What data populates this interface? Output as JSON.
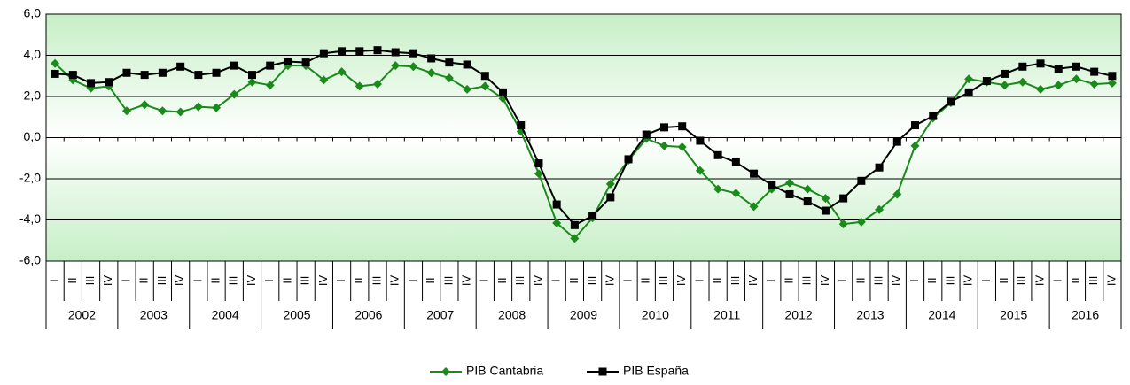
{
  "chart_data": {
    "type": "line",
    "categories": [
      "I",
      "II",
      "III",
      "IV",
      "I",
      "II",
      "III",
      "IV",
      "I",
      "II",
      "III",
      "IV",
      "I",
      "II",
      "III",
      "IV",
      "I",
      "II",
      "III",
      "IV",
      "I",
      "II",
      "III",
      "IV",
      "I",
      "II",
      "III",
      "IV",
      "I",
      "II",
      "III",
      "IV",
      "I",
      "II",
      "III",
      "IV",
      "I",
      "II",
      "III",
      "IV",
      "I",
      "II",
      "III",
      "IV",
      "I",
      "II",
      "III",
      "IV",
      "I",
      "II",
      "III",
      "IV",
      "I",
      "II",
      "III",
      "IV",
      "I",
      "II",
      "III",
      "IV"
    ],
    "years": [
      "2002",
      "2003",
      "2004",
      "2005",
      "2006",
      "2007",
      "2008",
      "2009",
      "2010",
      "2011",
      "2012",
      "2013",
      "2014",
      "2015",
      "2016"
    ],
    "series": [
      {
        "name": "PIB Cantabria",
        "color": "#1a8a1a",
        "marker": "diamond",
        "values": [
          3.6,
          2.8,
          2.4,
          2.5,
          1.3,
          1.6,
          1.3,
          1.25,
          1.5,
          1.45,
          2.1,
          2.7,
          2.55,
          3.5,
          3.5,
          2.8,
          3.2,
          2.5,
          2.6,
          3.5,
          3.45,
          3.15,
          2.9,
          2.35,
          2.5,
          1.9,
          0.3,
          -1.75,
          -4.15,
          -4.9,
          -3.9,
          -2.25,
          -1.1,
          -0.05,
          -0.4,
          -0.45,
          -1.6,
          -2.5,
          -2.7,
          -3.35,
          -2.5,
          -2.2,
          -2.5,
          -2.95,
          -4.2,
          -4.1,
          -3.5,
          -2.75,
          -0.4,
          0.95,
          1.7,
          2.85,
          2.7,
          2.55,
          2.7,
          2.35,
          2.55,
          2.85,
          2.6,
          2.65
        ]
      },
      {
        "name": "PIB España",
        "color": "#000000",
        "marker": "square",
        "values": [
          3.1,
          3.05,
          2.65,
          2.7,
          3.15,
          3.05,
          3.15,
          3.45,
          3.05,
          3.15,
          3.5,
          3.05,
          3.5,
          3.7,
          3.65,
          4.1,
          4.2,
          4.2,
          4.25,
          4.15,
          4.1,
          3.85,
          3.65,
          3.55,
          3.0,
          2.2,
          0.6,
          -1.25,
          -3.25,
          -4.25,
          -3.8,
          -2.9,
          -1.05,
          0.15,
          0.5,
          0.55,
          -0.15,
          -0.85,
          -1.2,
          -1.75,
          -2.3,
          -2.75,
          -3.1,
          -3.55,
          -2.95,
          -2.1,
          -1.45,
          -0.2,
          0.6,
          1.05,
          1.75,
          2.2,
          2.75,
          3.1,
          3.45,
          3.6,
          3.35,
          3.45,
          3.2,
          3.0
        ]
      }
    ],
    "ylim": [
      -6,
      6
    ],
    "yticks": [
      {
        "value": -6,
        "label": "-6,0"
      },
      {
        "value": -4,
        "label": "-4,0"
      },
      {
        "value": -2,
        "label": "-2,0"
      },
      {
        "value": 0,
        "label": "0,0"
      },
      {
        "value": 2,
        "label": "2,0"
      },
      {
        "value": 4,
        "label": "4,0"
      },
      {
        "value": 6,
        "label": "6,0"
      }
    ],
    "grid": true,
    "legend": "bottom"
  }
}
